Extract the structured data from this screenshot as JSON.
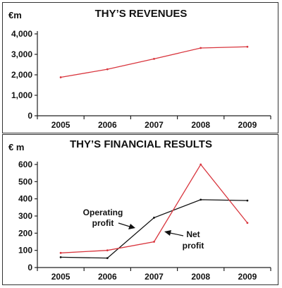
{
  "chart_data": [
    {
      "type": "line",
      "title": "THY’S REVENUES",
      "unit_label": "€m",
      "categories": [
        "2005",
        "2006",
        "2007",
        "2008",
        "2009"
      ],
      "series": [
        {
          "values": [
            1880,
            2270,
            2780,
            3310,
            3370
          ],
          "color": "#d9363e"
        }
      ],
      "ylim": [
        0,
        4000
      ],
      "yticks": [
        "0",
        "1,000",
        "2,000",
        "3,000",
        "4,000"
      ],
      "ytick_values": [
        0,
        1000,
        2000,
        3000,
        4000
      ],
      "grid": false
    },
    {
      "type": "line",
      "title": "THY’S FINANCIAL RESULTS",
      "unit_label": "€ m",
      "categories": [
        "2005",
        "2006",
        "2007",
        "2008",
        "2009"
      ],
      "series": [
        {
          "name": "Operating profit",
          "values": [
            60,
            55,
            290,
            395,
            390
          ],
          "color": "#111111"
        },
        {
          "name": "Net profit",
          "values": [
            85,
            100,
            150,
            600,
            260
          ],
          "color": "#d9363e"
        }
      ],
      "ylim": [
        0,
        600
      ],
      "yticks": [
        "0",
        "100",
        "200",
        "300",
        "400",
        "500",
        "600"
      ],
      "ytick_values": [
        0,
        100,
        200,
        300,
        400,
        500,
        600
      ],
      "annotations": [
        {
          "lines": [
            "Operating",
            "profit"
          ],
          "series": "Operating profit"
        },
        {
          "lines": [
            "Net",
            "profit"
          ],
          "series": "Net profit"
        }
      ],
      "grid": false
    }
  ]
}
